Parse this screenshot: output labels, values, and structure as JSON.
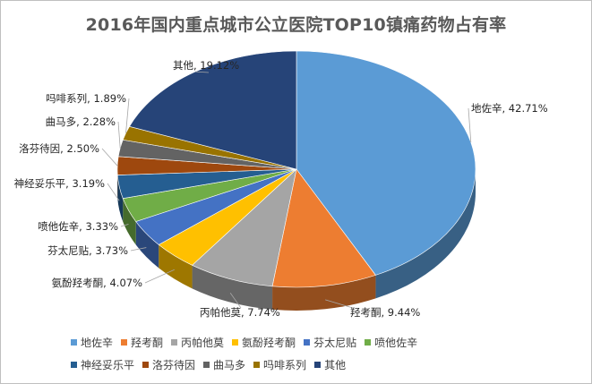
{
  "chart_data": {
    "type": "pie",
    "title": "2016年国内重点城市公立医院TOP10镇痛药物占有率",
    "slices": [
      {
        "name": "地佐辛",
        "value": 42.71,
        "label": "地佐辛, 42.71%",
        "color": "#5b9bd5"
      },
      {
        "name": "羟考酮",
        "value": 9.44,
        "label": "羟考酮, 9.44%",
        "color": "#ed7d31"
      },
      {
        "name": "丙帕他莫",
        "value": 7.74,
        "label": "丙帕他莫, 7.74%",
        "color": "#a5a5a5"
      },
      {
        "name": "氨酚羟考酮",
        "value": 4.07,
        "label": "氨酚羟考酮, 4.07%",
        "color": "#ffc000"
      },
      {
        "name": "芬太尼贴",
        "value": 3.73,
        "label": "芬太尼贴, 3.73%",
        "color": "#4472c4"
      },
      {
        "name": "喷他佐辛",
        "value": 3.33,
        "label": "喷他佐辛, 3.33%",
        "color": "#70ad47"
      },
      {
        "name": "神经妥乐平",
        "value": 3.19,
        "label": "神经妥乐平, 3.19%",
        "color": "#255e91"
      },
      {
        "name": "洛芬待因",
        "value": 2.5,
        "label": "洛芬待因, 2.50%",
        "color": "#9e480e"
      },
      {
        "name": "曲马多",
        "value": 2.28,
        "label": "曲马多, 2.28%",
        "color": "#636363"
      },
      {
        "name": "吗啡系列",
        "value": 1.89,
        "label": "吗啡系列, 1.89%",
        "color": "#997300"
      },
      {
        "name": "其他",
        "value": 19.12,
        "label": "其他, 19.12%",
        "color": "#264478"
      }
    ],
    "legend_position": "bottom"
  }
}
